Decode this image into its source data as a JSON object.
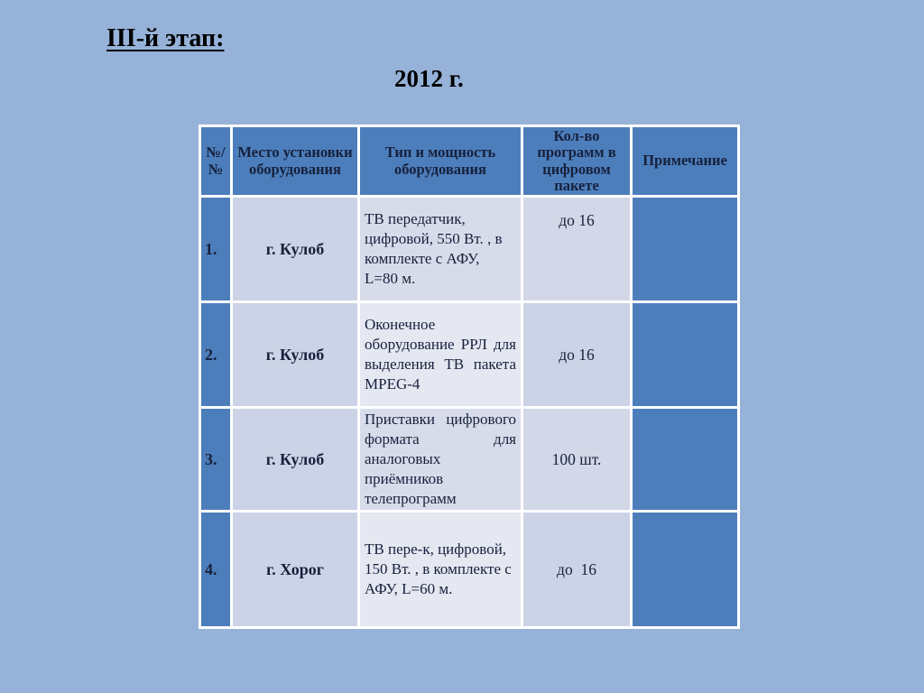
{
  "slide": {
    "stage_title": "III-й этап:",
    "year": "2012 г."
  },
  "table": {
    "headers": [
      "№/\n№",
      "Место установки оборудования",
      "Тип и мощность оборудования",
      "Кол-во программ в цифровом пакете",
      "Примечание"
    ],
    "rows": [
      {
        "num": "1.",
        "location": "г. Кулоб",
        "equipment": "ТВ передатчик,\nцифровой, 550 Вт. , в\nкомплекте с АФУ,\nL=80 м.",
        "programs": "до 16",
        "note": ""
      },
      {
        "num": "2.",
        "location": "г. Кулоб",
        "equipment": "Оконечное оборудование РРЛ для выделения ТВ пакета MPEG-4",
        "programs": "до 16",
        "note": ""
      },
      {
        "num": "3.",
        "location": "г. Кулоб",
        "equipment": "Приставки цифрового формата для аналоговых приёмников телепрограмм",
        "programs": "100 шт.",
        "note": ""
      },
      {
        "num": "4.",
        "location": "г. Хорог",
        "equipment": "ТВ пере-к, цифровой,\n150 Вт. , в комплекте с\nАФУ, L=60 м.",
        "programs": "до  16",
        "note": ""
      }
    ]
  },
  "colors": {
    "background": "#96b2d8",
    "accent_blue": "#4d7ebc",
    "band_dark": "#ccd3e6",
    "band_mid": "#d8dcea",
    "band_light": "#e5e7f1",
    "prog_mid": "#d3d8e8",
    "border_white": "#ffffff",
    "text_dark": "#16213c",
    "title_black": "#000000"
  }
}
